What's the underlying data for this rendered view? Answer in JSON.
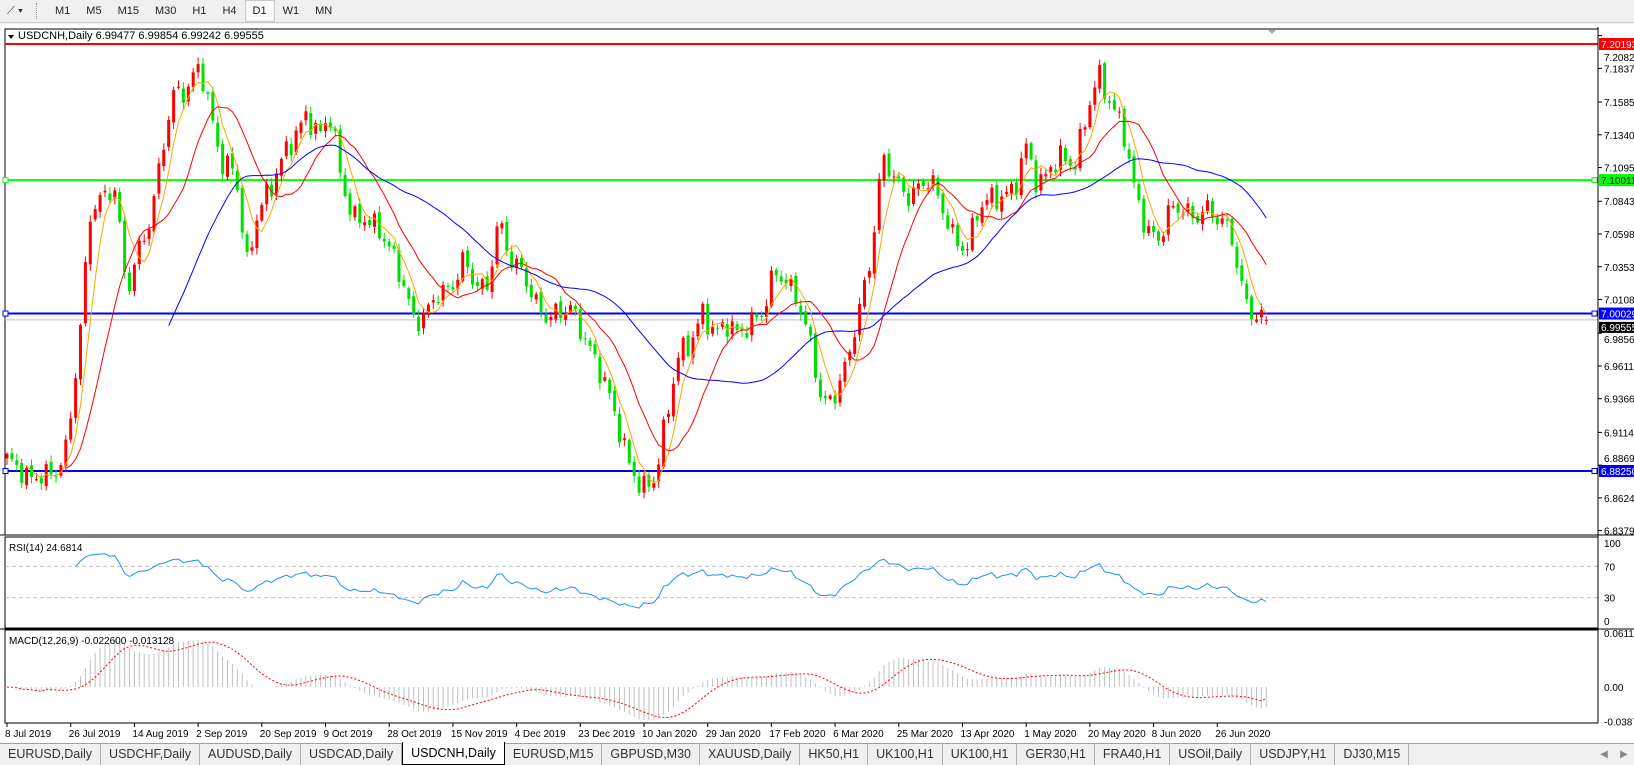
{
  "toolbar": {
    "timeframes": [
      "M1",
      "M5",
      "M15",
      "M30",
      "H1",
      "H4",
      "D1",
      "W1",
      "MN"
    ],
    "active_timeframe": "D1"
  },
  "chart": {
    "header": "USDCNH,Daily  6.99477 6.99854 6.99242 6.99555",
    "price_labels": {
      "red": "7.20193",
      "green": "7.10011",
      "blue1": "7.00029",
      "blue2": "6.88250",
      "current": "6.99555"
    },
    "rsi_label": "RSI(14) 24.6814",
    "macd_label": "MACD(12,26,9) -0.022600 -0.013128",
    "macd_ticks": [
      "0.06111",
      "0.00",
      "-0.03877"
    ],
    "rsi_ticks": [
      "100",
      "70",
      "30",
      "0"
    ]
  },
  "chart_data": {
    "type": "candlestick",
    "symbol": "USDCNH",
    "timeframe": "Daily",
    "last_bar": {
      "open": 6.99477,
      "high": 6.99854,
      "low": 6.99242,
      "close": 6.99555
    },
    "ylim": [
      6.8379,
      7.2082
    ],
    "y_ticks": [
      "7.20820",
      "7.18370",
      "7.15850",
      "7.13400",
      "7.10950",
      "7.08430",
      "7.05980",
      "7.03530",
      "7.01080",
      "6.98560",
      "6.96110",
      "6.93660",
      "6.91140",
      "6.88690",
      "6.86240",
      "6.83790"
    ],
    "x_tick_labels": [
      "8 Jul 2019",
      "26 Jul 2019",
      "14 Aug 2019",
      "2 Sep 2019",
      "20 Sep 2019",
      "9 Oct 2019",
      "28 Oct 2019",
      "15 Nov 2019",
      "4 Dec 2019",
      "23 Dec 2019",
      "10 Jan 2020",
      "29 Jan 2020",
      "17 Feb 2020",
      "6 Mar 2020",
      "25 Mar 2020",
      "13 Apr 2020",
      "1 May 2020",
      "20 May 2020",
      "8 Jun 2020",
      "26 Jun 2020"
    ],
    "horizontal_lines": [
      {
        "price": 7.20193,
        "color": "#ff0000"
      },
      {
        "price": 7.10011,
        "color": "#00ff00"
      },
      {
        "price": 7.00029,
        "color": "#0000ff"
      },
      {
        "price": 6.8825,
        "color": "#0000ff"
      }
    ],
    "close_path": [
      6.892,
      6.884,
      6.876,
      6.88,
      6.88,
      6.9,
      6.978,
      7.079,
      7.087,
      7.094,
      7.016,
      7.048,
      7.071,
      7.126,
      7.168,
      7.165,
      7.188,
      7.149,
      7.11,
      7.11,
      7.036,
      7.079,
      7.094,
      7.118,
      7.133,
      7.149,
      7.133,
      7.149,
      7.094,
      7.071,
      7.071,
      7.063,
      7.048,
      7.024,
      6.993,
      7.001,
      7.017,
      7.017,
      7.04,
      7.024,
      7.017,
      7.071,
      7.04,
      7.032,
      7.009,
      6.997,
      7.001,
      7.005,
      6.985,
      6.966,
      6.946,
      6.915,
      6.884,
      6.869,
      6.876,
      6.923,
      6.97,
      6.978,
      7.001,
      6.985,
      6.993,
      6.985,
      6.993,
      7.001,
      7.032,
      7.024,
      7.009,
      6.978,
      6.931,
      6.939,
      6.962,
      7.001,
      7.04,
      7.118,
      7.102,
      7.087,
      7.094,
      7.102,
      7.079,
      7.055,
      7.048,
      7.079,
      7.087,
      7.087,
      7.094,
      7.126,
      7.094,
      7.11,
      7.118,
      7.11,
      7.149,
      7.18,
      7.157,
      7.141,
      7.094,
      7.063,
      7.055,
      7.079,
      7.079,
      7.071,
      7.079,
      7.071,
      7.063,
      7.017,
      6.997,
      6.99555
    ],
    "rsi_levels": [
      70,
      30
    ],
    "rsi_last": 24.6814,
    "macd_last": -0.0226,
    "signal_last": -0.013128,
    "colors": {
      "up": "#ff0000",
      "down": "#00e000",
      "ma_fast": "#ffa500",
      "ma_mid": "#ff0000",
      "ma_slow": "#0000ff",
      "rsi": "#1e90ff",
      "macd_hist": "#c0c0c0",
      "macd_signal": "#ff0000"
    }
  },
  "tabs": [
    "EURUSD,Daily",
    "USDCHF,Daily",
    "AUDUSD,Daily",
    "USDCAD,Daily",
    "USDCNH,Daily",
    "EURUSD,M15",
    "GBPUSD,M30",
    "XAUUSD,Daily",
    "HK50,H1",
    "UK100,H1",
    "UK100,H1",
    "GER30,H1",
    "FRA40,H1",
    "USOil,Daily",
    "USDJPY,H1",
    "DJ30,M15"
  ],
  "active_tab": "USDCNH,Daily"
}
